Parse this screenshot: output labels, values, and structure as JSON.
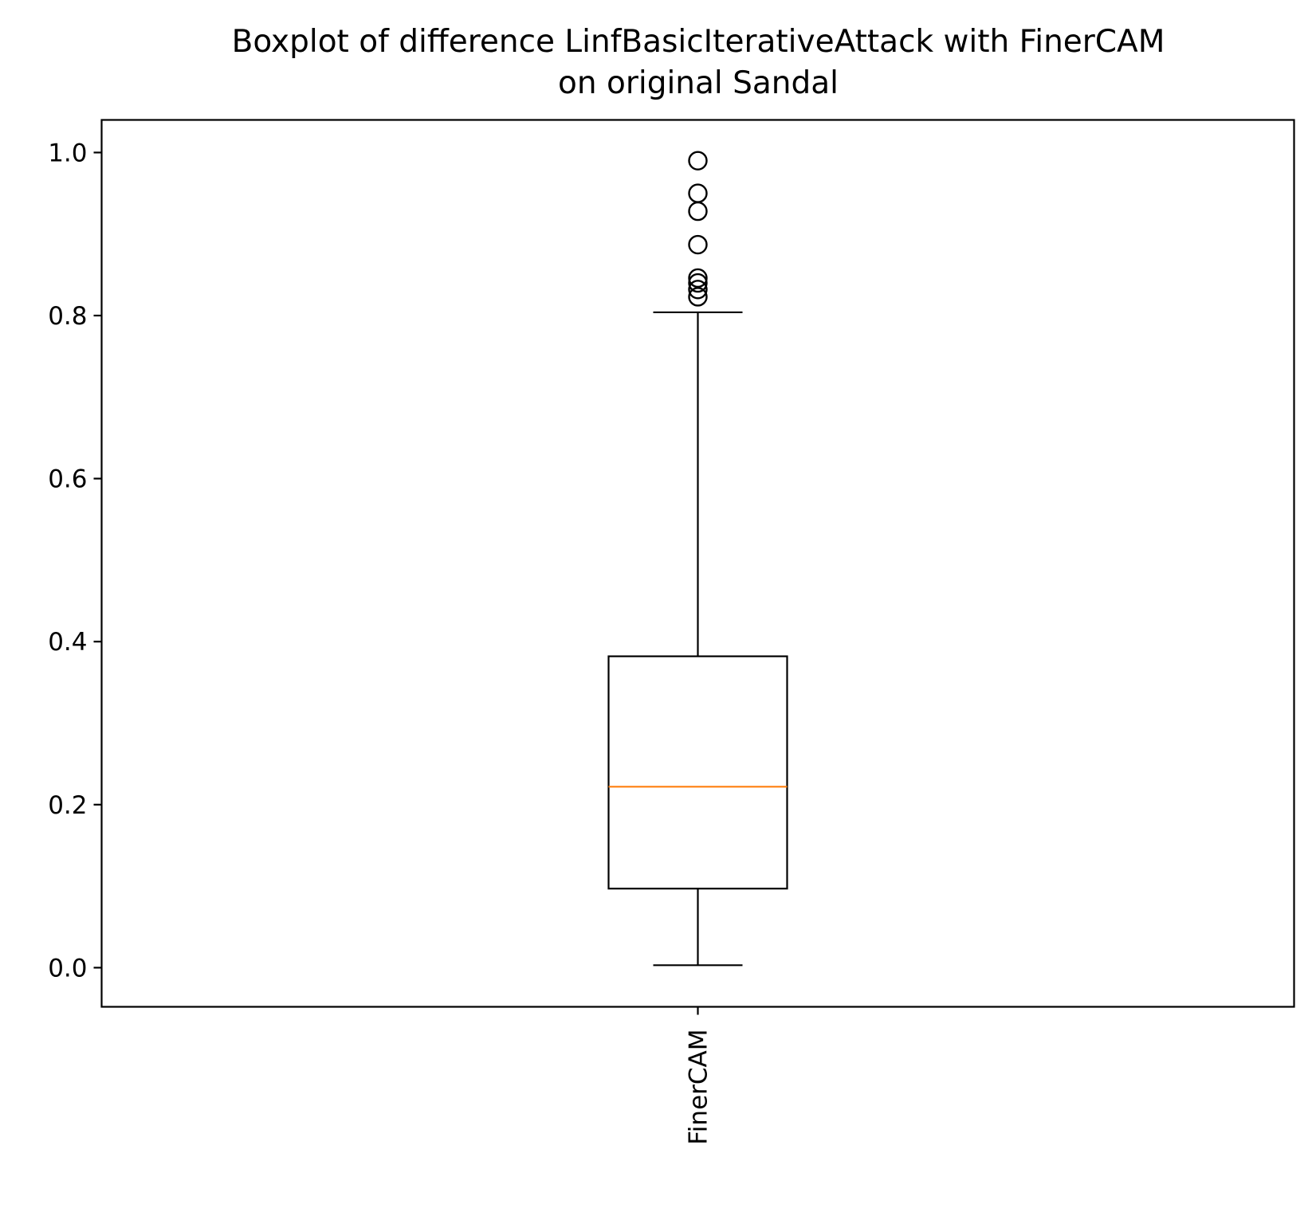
{
  "chart_data": {
    "type": "boxplot",
    "title": [
      "Boxplot of difference LinfBasicIterativeAttack with FinerCAM",
      "on original Sandal"
    ],
    "xlabel": "",
    "ylabel": "",
    "categories": [
      "FinerCAM"
    ],
    "ylim": [
      -0.048,
      1.04
    ],
    "yticks": [
      0.0,
      0.2,
      0.4,
      0.6,
      0.8,
      1.0
    ],
    "ytick_labels": [
      "0.0",
      "0.2",
      "0.4",
      "0.6",
      "0.8",
      "1.0"
    ],
    "grid": false,
    "boxes": [
      {
        "label": "FinerCAM",
        "whisker_low": 0.003,
        "q1": 0.097,
        "median": 0.222,
        "q3": 0.382,
        "whisker_high": 0.804,
        "outliers": [
          0.99,
          0.95,
          0.928,
          0.887,
          0.846,
          0.84,
          0.832,
          0.823
        ]
      }
    ],
    "colors": {
      "box": "#000000",
      "median": "#ff7f0e",
      "outlier": "#000000"
    }
  }
}
